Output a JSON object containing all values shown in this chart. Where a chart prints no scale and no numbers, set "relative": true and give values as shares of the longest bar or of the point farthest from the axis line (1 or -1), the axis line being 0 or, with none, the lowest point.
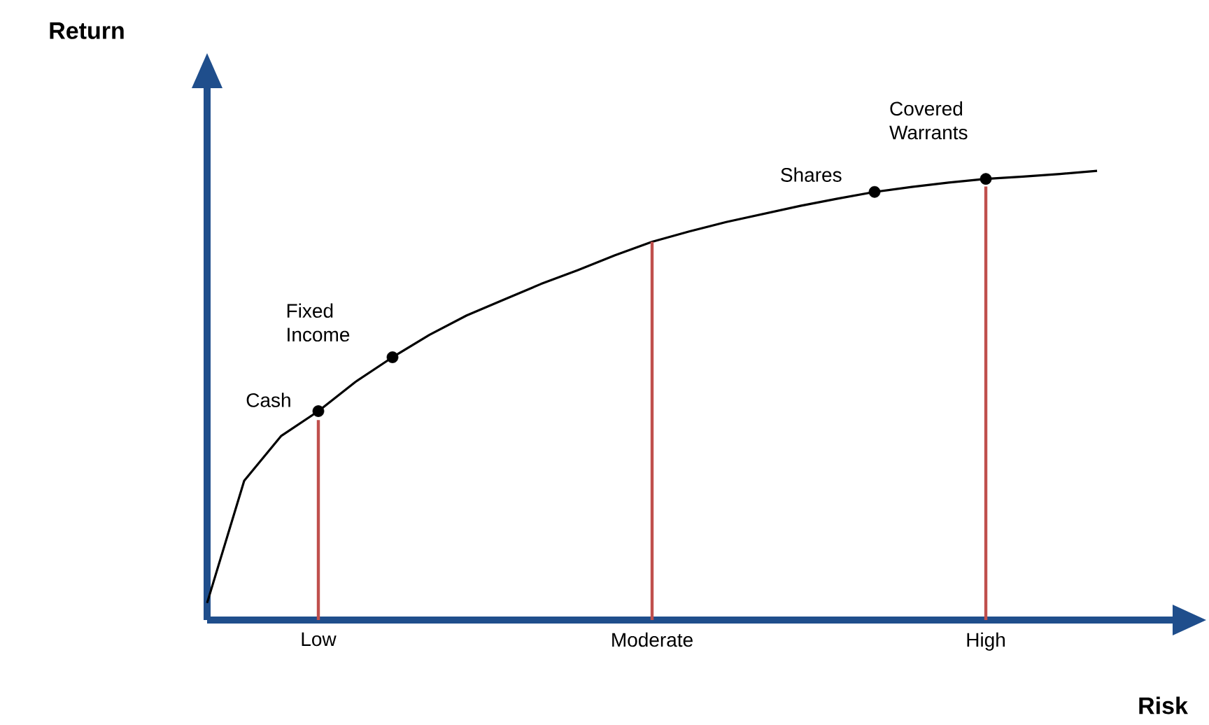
{
  "chart_data": {
    "type": "line",
    "relative": true,
    "xlabel": "Risk",
    "categories": [
      null,
      null,
      null,
      "Low",
      null,
      null,
      null,
      null,
      null,
      null,
      null,
      null,
      "Moderate",
      null,
      null,
      null,
      null,
      null,
      null,
      null,
      null,
      "High",
      null,
      null,
      null
    ],
    "series": [
      {
        "color": "#000000",
        "values": [
          0.038,
          0.31,
          0.41,
          0.465,
          0.53,
          0.585,
          0.635,
          0.678,
          0.713,
          0.748,
          0.779,
          0.812,
          0.842,
          0.865,
          0.886,
          0.904,
          0.922,
          0.938,
          0.953,
          0.964,
          0.974,
          0.982,
          0.987,
          0.993,
          1
        ]
      },
      {
        "type": "bar",
        "color": "#c0504d",
        "values": [
          null,
          null,
          null,
          0.445,
          null,
          null,
          null,
          null,
          null,
          null,
          null,
          null,
          0.842,
          null,
          null,
          null,
          null,
          null,
          null,
          null,
          null,
          0.965,
          null,
          null,
          null
        ]
      },
      {
        "type": "scatter",
        "color": "#000000",
        "marker": "circle",
        "values": [
          null,
          null,
          null,
          0.465,
          null,
          0.585,
          null,
          null,
          null,
          null,
          null,
          null,
          null,
          null,
          null,
          null,
          null,
          null,
          0.953,
          null,
          null,
          0.982,
          null,
          null,
          null
        ]
      }
    ],
    "annotations": [
      "Cash",
      "Fixed Income",
      "Shares",
      "Covered Warrants",
      "Return"
    ]
  }
}
